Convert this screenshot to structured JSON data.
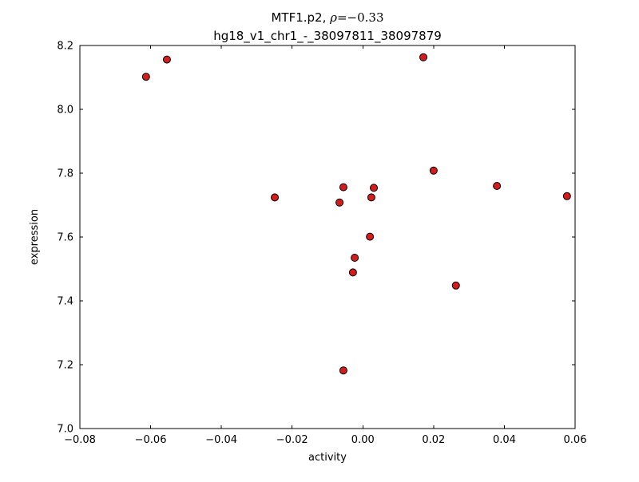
{
  "chart_data": {
    "type": "scatter",
    "title_main": "MTF1.p2, ",
    "title_math_var": "ρ",
    "title_math_rest": "=−0.33",
    "subtitle": "hg18_v1_chr1_-_38097811_38097879",
    "xlabel": "activity",
    "ylabel": "expression",
    "xlim": [
      -0.08,
      0.06
    ],
    "ylim": [
      7.0,
      8.2
    ],
    "grid": false,
    "legend": false,
    "marker_color": "#d41c1c",
    "marker_edge_color": "#000000",
    "x_ticks": [
      {
        "value": -0.08,
        "label": "−0.08"
      },
      {
        "value": -0.06,
        "label": "−0.06"
      },
      {
        "value": -0.04,
        "label": "−0.04"
      },
      {
        "value": -0.02,
        "label": "−0.02"
      },
      {
        "value": 0.0,
        "label": "0.00"
      },
      {
        "value": 0.02,
        "label": "0.02"
      },
      {
        "value": 0.04,
        "label": "0.04"
      },
      {
        "value": 0.06,
        "label": "0.06"
      }
    ],
    "y_ticks": [
      {
        "value": 7.0,
        "label": "7.0"
      },
      {
        "value": 7.2,
        "label": "7.2"
      },
      {
        "value": 7.4,
        "label": "7.4"
      },
      {
        "value": 7.6,
        "label": "7.6"
      },
      {
        "value": 7.8,
        "label": "7.8"
      },
      {
        "value": 8.0,
        "label": "8.0"
      },
      {
        "value": 8.2,
        "label": "8.2"
      }
    ],
    "points": [
      {
        "x": -0.0613,
        "y": 8.102
      },
      {
        "x": -0.0554,
        "y": 8.156
      },
      {
        "x": 0.0171,
        "y": 8.163
      },
      {
        "x": 0.02,
        "y": 7.808
      },
      {
        "x": 0.0379,
        "y": 7.76
      },
      {
        "x": 0.0577,
        "y": 7.728
      },
      {
        "x": -0.0249,
        "y": 7.724
      },
      {
        "x": -0.0055,
        "y": 7.756
      },
      {
        "x": -0.0066,
        "y": 7.708
      },
      {
        "x": 0.0031,
        "y": 7.754
      },
      {
        "x": 0.0024,
        "y": 7.724
      },
      {
        "x": 0.002,
        "y": 7.601
      },
      {
        "x": -0.0023,
        "y": 7.535
      },
      {
        "x": -0.0028,
        "y": 7.489
      },
      {
        "x": 0.0263,
        "y": 7.448
      },
      {
        "x": -0.0055,
        "y": 7.182
      }
    ]
  }
}
